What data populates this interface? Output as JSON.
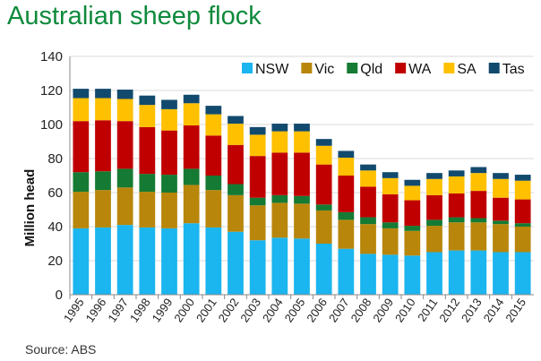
{
  "title": "Australian sheep flock",
  "source": "Source: ABS",
  "chart_data": {
    "type": "bar",
    "stacked": true,
    "title": "Australian sheep flock",
    "xlabel": "",
    "ylabel": "Million head",
    "ylim": [
      0,
      140
    ],
    "yticks": [
      0,
      20,
      40,
      60,
      80,
      100,
      120,
      140
    ],
    "grid": true,
    "legend_position": "top-right",
    "categories": [
      "1995",
      "1996",
      "1997",
      "1998",
      "1999",
      "2000",
      "2001",
      "2002",
      "2003",
      "2004",
      "2005",
      "2006",
      "2007",
      "2008",
      "2009",
      "2010",
      "2011",
      "2012",
      "2013",
      "2014",
      "2015"
    ],
    "series": [
      {
        "name": "NSW",
        "color": "#1bb5ef",
        "values": [
          39,
          39.5,
          41,
          39.5,
          39,
          42,
          39.5,
          37,
          32,
          33.5,
          33,
          30,
          27,
          24,
          23.5,
          23,
          25,
          26,
          26,
          25,
          25
        ]
      },
      {
        "name": "Vic",
        "color": "#b8860b",
        "values": [
          21.5,
          22,
          22,
          21,
          21,
          22.5,
          22,
          21.5,
          20.5,
          20.5,
          20.5,
          19.5,
          17,
          17.5,
          15.5,
          14.5,
          15.5,
          16.5,
          16.5,
          16.5,
          15
        ]
      },
      {
        "name": "Qld",
        "color": "#157a33",
        "values": [
          11.5,
          11,
          11,
          10.5,
          10.5,
          9.5,
          8.5,
          6.5,
          4.5,
          4.5,
          4.5,
          3.5,
          4.5,
          4,
          3.5,
          3,
          3.5,
          3,
          2.5,
          2,
          2
        ]
      },
      {
        "name": "WA",
        "color": "#c00000",
        "values": [
          30,
          30,
          28,
          27.5,
          26,
          25.5,
          23.5,
          23,
          24.5,
          25,
          25.5,
          23.5,
          21.5,
          18,
          16.5,
          15,
          14.5,
          14,
          16,
          13.5,
          14
        ]
      },
      {
        "name": "SA",
        "color": "#ffc000",
        "values": [
          13.5,
          13,
          13,
          13,
          12.5,
          13,
          12.5,
          12.5,
          12.5,
          12.5,
          12.5,
          11,
          10.5,
          9.5,
          9.5,
          8.5,
          9.5,
          10,
          10.5,
          11,
          11
        ]
      },
      {
        "name": "Tas",
        "color": "#124a6e",
        "values": [
          5.5,
          5.5,
          5.5,
          5.5,
          5.5,
          5,
          5,
          4.5,
          4.5,
          4.5,
          4.5,
          4,
          4,
          3.5,
          3.5,
          3.5,
          3.5,
          3.5,
          3.5,
          3.5,
          3.5
        ]
      }
    ]
  }
}
